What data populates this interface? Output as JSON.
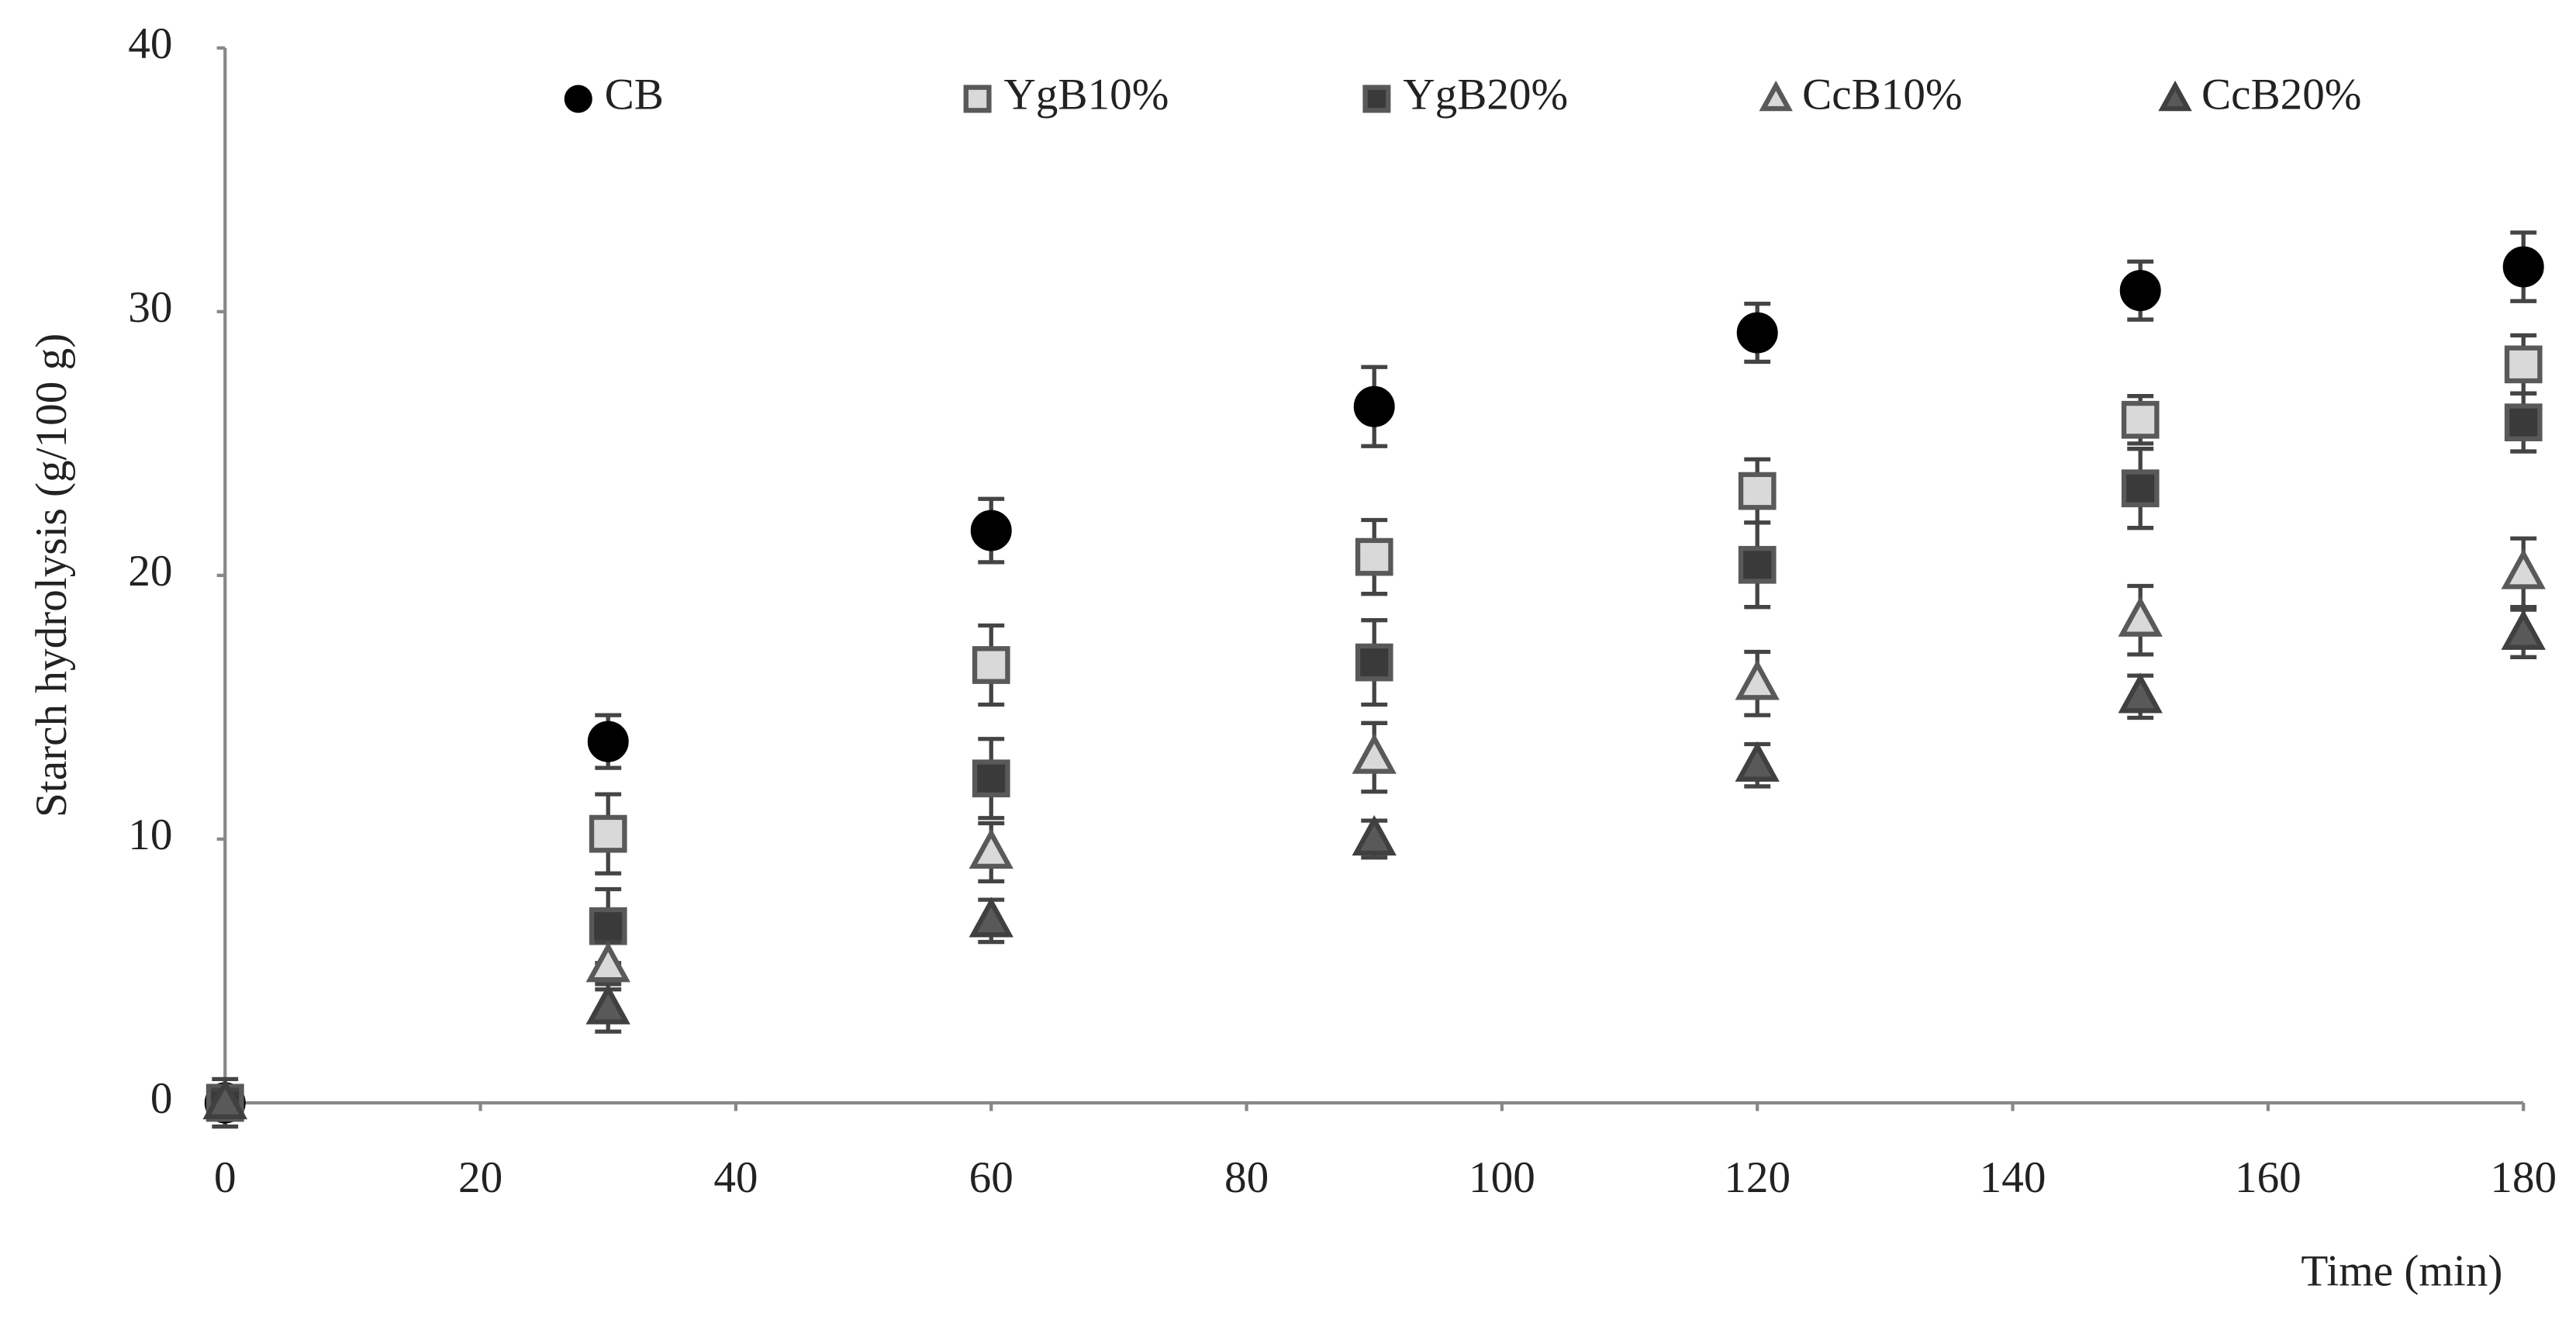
{
  "chart_data": {
    "type": "scatter",
    "x_label": "Time (min)",
    "y_label": "Starch hydrolysis (g/100 g)",
    "xlim": [
      0,
      180
    ],
    "xticks": [
      0,
      20,
      40,
      60,
      80,
      100,
      120,
      140,
      160,
      180
    ],
    "ylim": [
      0,
      40
    ],
    "yticks": [
      0,
      10,
      20,
      30,
      40
    ],
    "grid": false,
    "legend": "top",
    "x": [
      0,
      30,
      60,
      90,
      120,
      150,
      180
    ],
    "series": [
      {
        "name": "CB",
        "marker": "circle",
        "color": "#000000",
        "edge_color": "#000000",
        "values": [
          0,
          13.7,
          21.7,
          26.4,
          29.2,
          30.8,
          31.7
        ],
        "errors": [
          0.9,
          1.0,
          1.2,
          1.5,
          1.1,
          1.1,
          1.3
        ]
      },
      {
        "name": "YgB10%",
        "marker": "square",
        "color": "#d9d9d9",
        "edge_color": "#595959",
        "values": [
          0,
          10.2,
          16.6,
          20.7,
          23.2,
          25.9,
          28.0
        ],
        "errors": [
          0.5,
          1.5,
          1.5,
          1.4,
          1.2,
          0.9,
          1.1
        ]
      },
      {
        "name": "YgB20%",
        "marker": "square",
        "color": "#3a3a3a",
        "edge_color": "#595959",
        "values": [
          0,
          6.7,
          12.3,
          16.7,
          20.4,
          23.3,
          25.8
        ],
        "errors": [
          0.5,
          1.4,
          1.5,
          1.6,
          1.6,
          1.5,
          1.1
        ]
      },
      {
        "name": "CcB10%",
        "marker": "triangle",
        "color": "#d9d9d9",
        "edge_color": "#595959",
        "values": [
          0,
          5.2,
          9.5,
          13.1,
          15.9,
          18.3,
          20.1
        ],
        "errors": [
          0.5,
          0.9,
          1.1,
          1.3,
          1.2,
          1.3,
          1.3
        ]
      },
      {
        "name": "CcB20%",
        "marker": "triangle",
        "color": "#595959",
        "edge_color": "#404040",
        "values": [
          0,
          3.6,
          6.9,
          10.0,
          12.8,
          15.4,
          17.8
        ],
        "errors": [
          0.5,
          0.9,
          0.8,
          0.7,
          0.8,
          0.8,
          0.9
        ]
      }
    ]
  }
}
